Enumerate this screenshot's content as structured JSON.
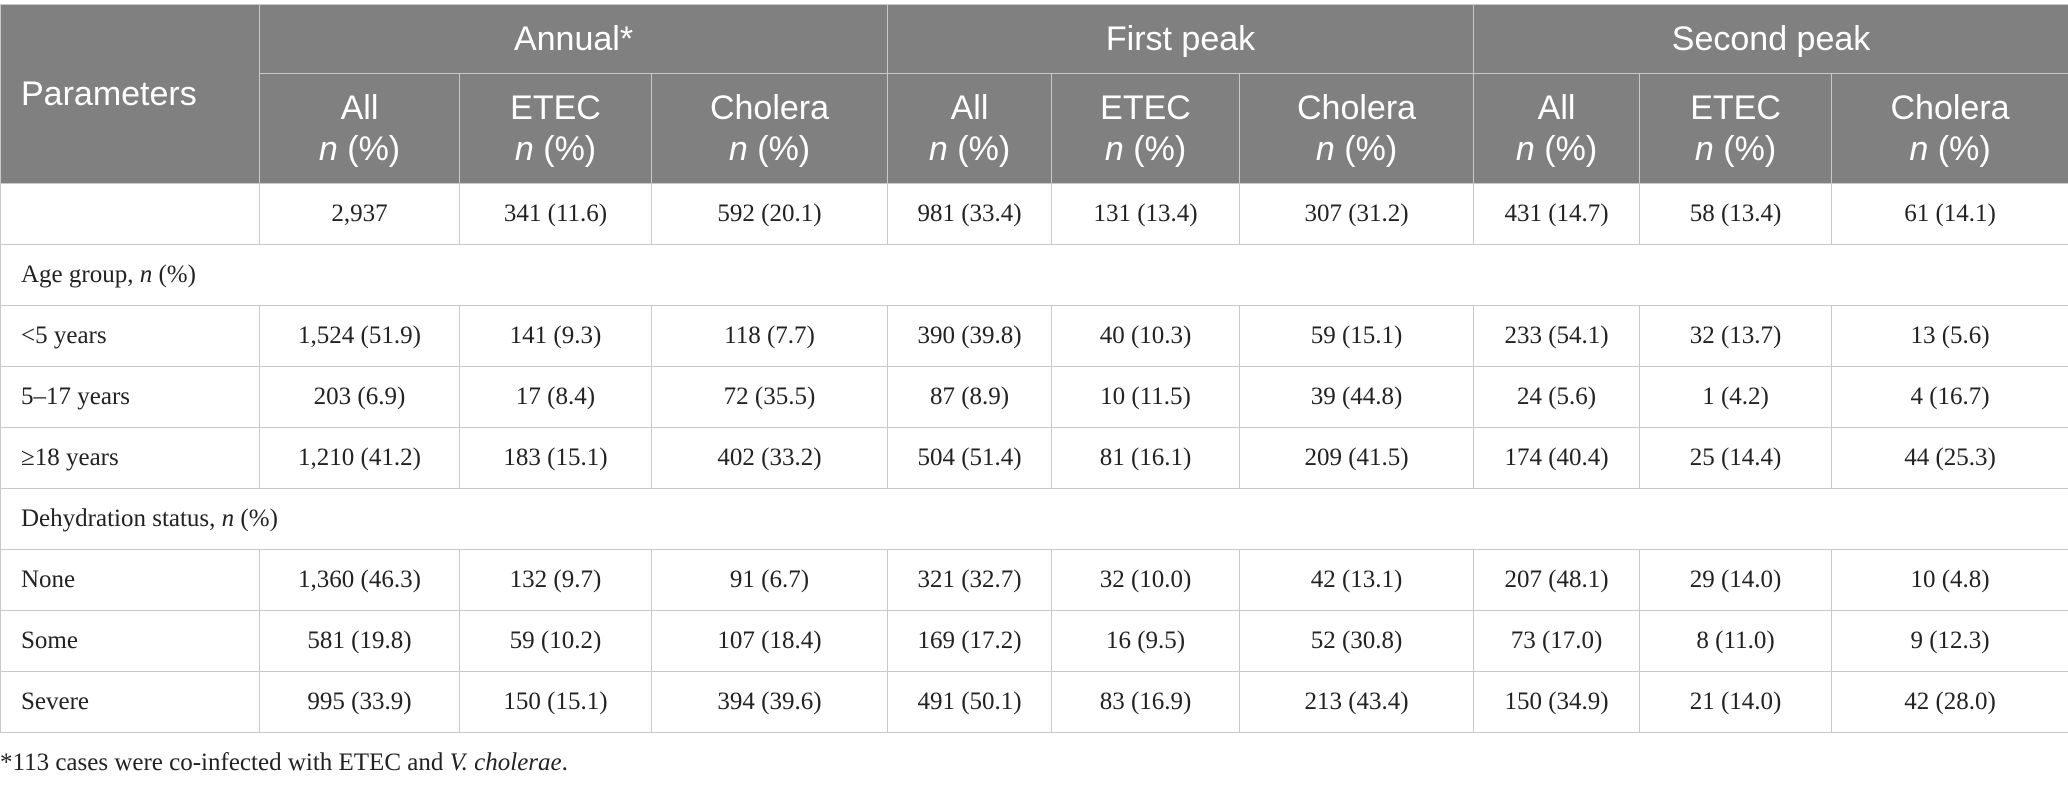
{
  "header": {
    "parameters": "Parameters",
    "groups": [
      "Annual*",
      "First peak",
      "Second peak"
    ],
    "sub_names": [
      "All",
      "ETEC",
      "Cholera",
      "All",
      "ETEC",
      "Cholera",
      "All",
      "ETEC",
      "Cholera"
    ],
    "sub_unit_n": "n",
    "sub_unit_pct": " (%)"
  },
  "total_row": [
    "2,937",
    "341 (11.6)",
    "592 (20.1)",
    "981 (33.4)",
    "131 (13.4)",
    "307 (31.2)",
    "431 (14.7)",
    "58 (13.4)",
    "61 (14.1)"
  ],
  "sections": [
    {
      "title": "Age group, ",
      "title_n": "n",
      "title_pct": " (%)",
      "rows": [
        {
          "label": "<5 years",
          "values": [
            "1,524 (51.9)",
            "141 (9.3)",
            "118 (7.7)",
            "390 (39.8)",
            "40 (10.3)",
            "59 (15.1)",
            "233 (54.1)",
            "32 (13.7)",
            "13 (5.6)"
          ]
        },
        {
          "label": "5–17 years",
          "values": [
            "203 (6.9)",
            "17 (8.4)",
            "72 (35.5)",
            "87 (8.9)",
            "10 (11.5)",
            "39 (44.8)",
            "24 (5.6)",
            "1 (4.2)",
            "4 (16.7)"
          ]
        },
        {
          "label": "≥18 years",
          "values": [
            "1,210 (41.2)",
            "183 (15.1)",
            "402 (33.2)",
            "504 (51.4)",
            "81 (16.1)",
            "209 (41.5)",
            "174 (40.4)",
            "25 (14.4)",
            "44 (25.3)"
          ]
        }
      ]
    },
    {
      "title": "Dehydration status, ",
      "title_n": "n",
      "title_pct": " (%)",
      "rows": [
        {
          "label": "None",
          "values": [
            "1,360 (46.3)",
            "132 (9.7)",
            "91 (6.7)",
            "321 (32.7)",
            "32 (10.0)",
            "42 (13.1)",
            "207 (48.1)",
            "29 (14.0)",
            "10 (4.8)"
          ]
        },
        {
          "label": "Some",
          "values": [
            "581 (19.8)",
            "59 (10.2)",
            "107 (18.4)",
            "169 (17.2)",
            "16 (9.5)",
            "52 (30.8)",
            "73 (17.0)",
            "8 (11.0)",
            "9 (12.3)"
          ]
        },
        {
          "label": "Severe",
          "values": [
            "995 (33.9)",
            "150 (15.1)",
            "394 (39.6)",
            "491 (50.1)",
            "83 (16.9)",
            "213 (43.4)",
            "150 (34.9)",
            "21 (14.0)",
            "42 (28.0)"
          ]
        }
      ]
    }
  ],
  "footnote": {
    "prefix": "*113 cases were co-infected with ETEC and ",
    "italic": "V. cholerae",
    "suffix": "."
  }
}
